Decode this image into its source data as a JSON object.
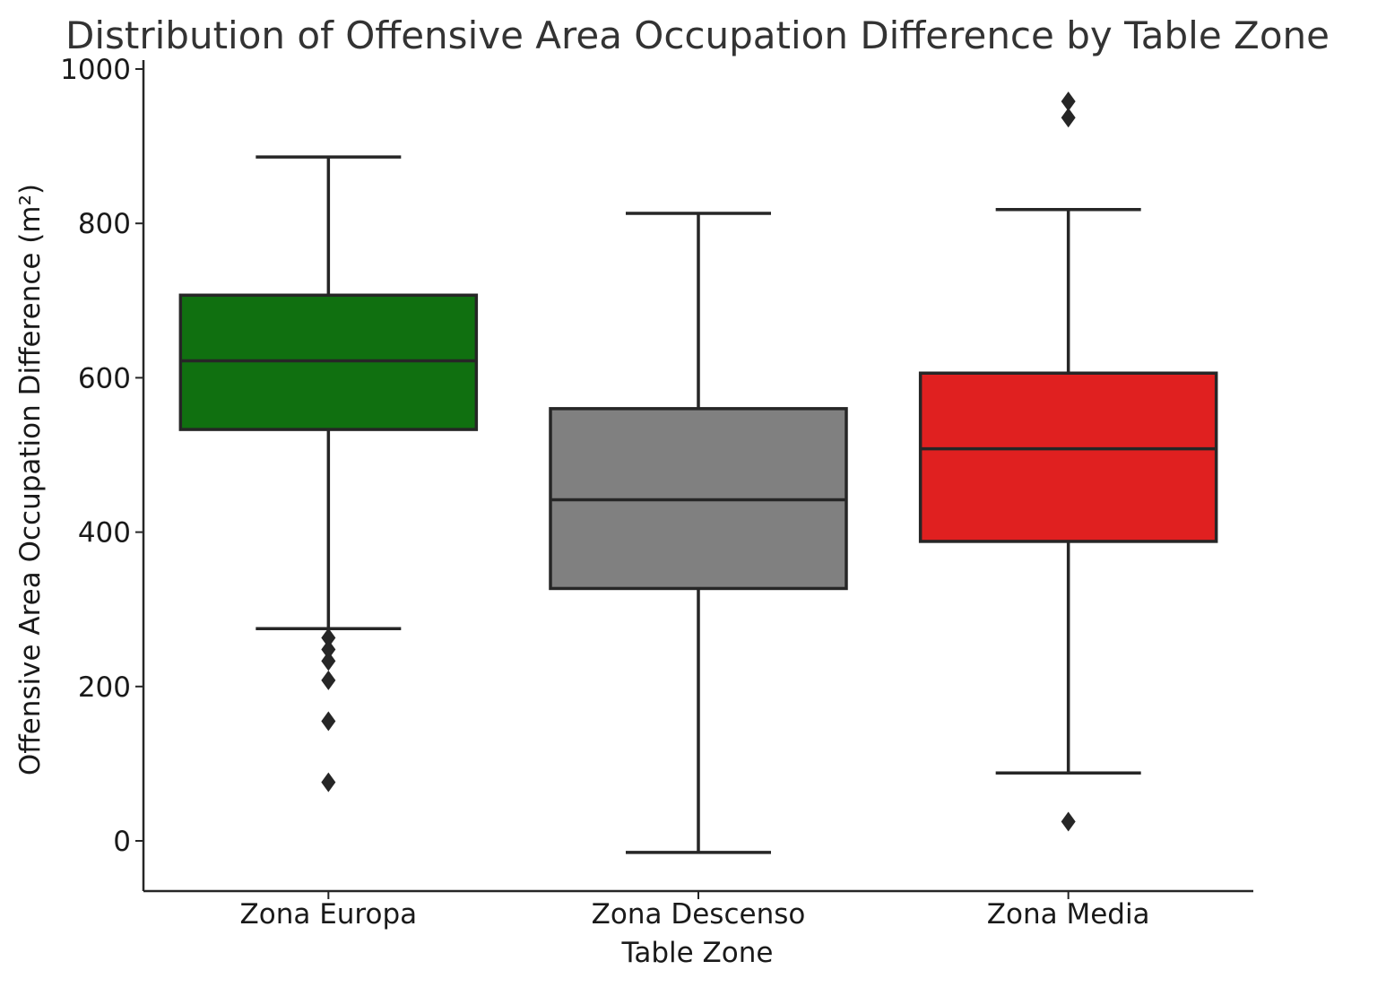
{
  "chart_data": {
    "type": "box",
    "title": "Distribution of Offensive Area Occupation Difference by Table Zone",
    "xlabel": "Table Zone",
    "ylabel": "Offensive Area Occupation Difference (m²)",
    "ylim": [
      -65,
      1000
    ],
    "yticks": [
      0,
      200,
      400,
      600,
      800,
      1000
    ],
    "grid": false,
    "legend": "none",
    "categories": [
      "Zona Europa",
      "Zona Descenso",
      "Zona Media"
    ],
    "boxes": [
      {
        "category": "Zona Europa",
        "color": "#107010",
        "whisker_low": 275,
        "q1": 533,
        "median": 622,
        "q3": 707,
        "whisker_high": 886,
        "outliers": [
          263,
          248,
          233,
          208,
          155,
          76
        ]
      },
      {
        "category": "Zona Descenso",
        "color": "#808080",
        "whisker_low": -15,
        "q1": 327,
        "median": 442,
        "q3": 560,
        "whisker_high": 813,
        "outliers": []
      },
      {
        "category": "Zona Media",
        "color": "#E02020",
        "whisker_low": 88,
        "q1": 388,
        "median": 508,
        "q3": 606,
        "whisker_high": 818,
        "outliers": [
          958,
          937,
          25
        ]
      }
    ]
  }
}
